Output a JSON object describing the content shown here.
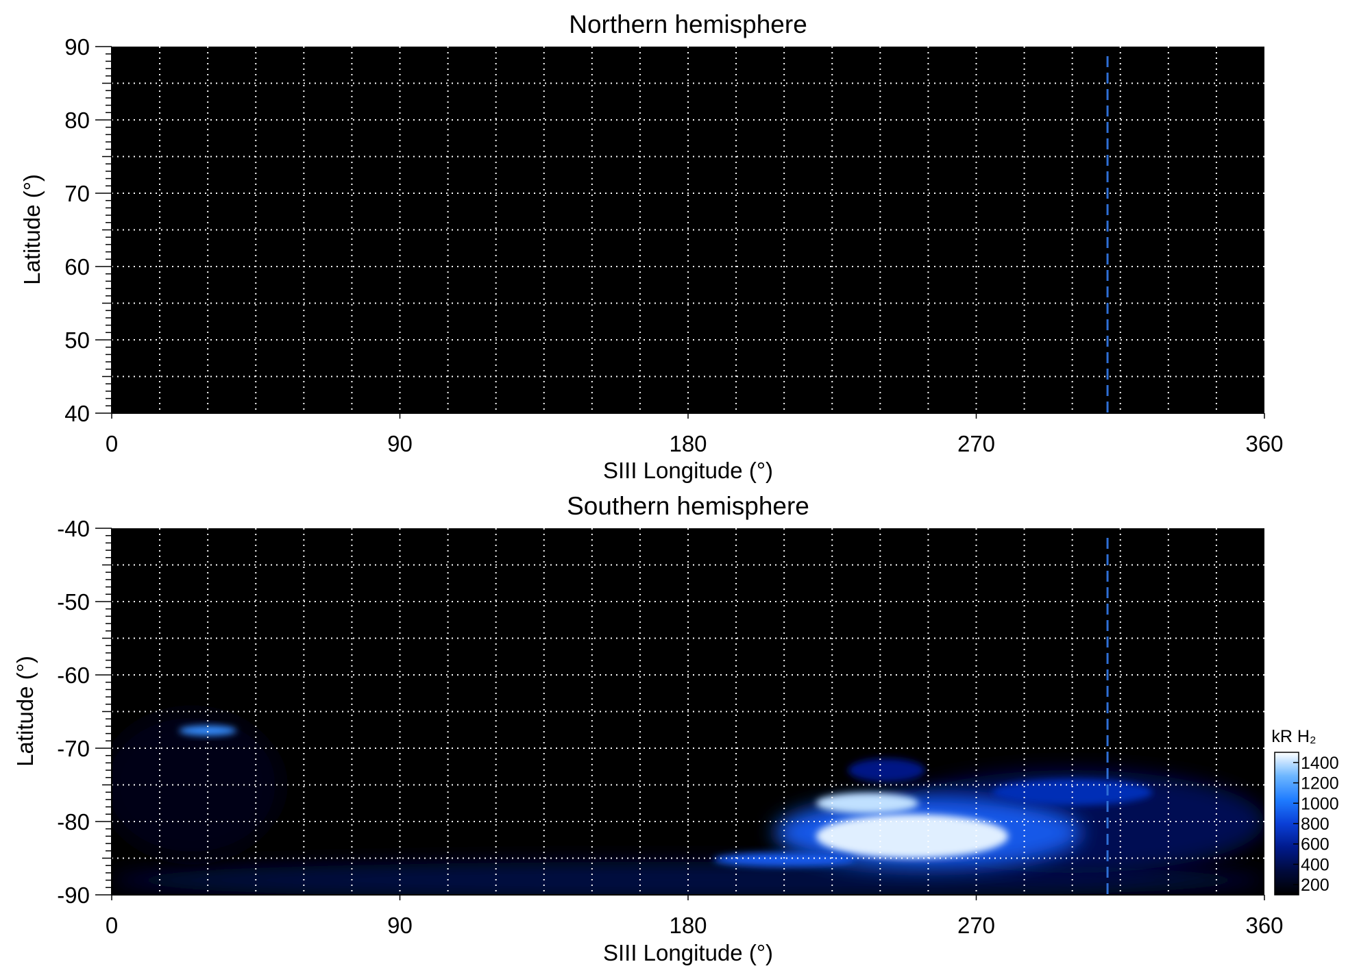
{
  "chart_data": [
    {
      "type": "heatmap",
      "title": "Northern hemisphere",
      "xlabel": "SIII Longitude (°)",
      "ylabel": "Latitude (°)",
      "xlim": [
        0,
        360
      ],
      "ylim": [
        40,
        90
      ],
      "xticks": [
        0,
        90,
        180,
        270,
        360
      ],
      "xtick_labels": [
        "0",
        "90",
        "180",
        "270",
        "360"
      ],
      "yticks": [
        40,
        50,
        60,
        70,
        80,
        90
      ],
      "ytick_labels": [
        "40",
        "50",
        "60",
        "70",
        "80",
        "90"
      ],
      "grid": true,
      "grid_x_step": 15,
      "grid_y_step": 5,
      "background_color": "#000000",
      "reference_line": {
        "x": 311,
        "style": "dashed",
        "color": "#2f6fd6"
      },
      "emission_regions": []
    },
    {
      "type": "heatmap",
      "title": "Southern hemisphere",
      "xlabel": "SIII Longitude (°)",
      "ylabel": "Latitude (°)",
      "xlim": [
        0,
        360
      ],
      "ylim": [
        -90,
        -40
      ],
      "xticks": [
        0,
        90,
        180,
        270,
        360
      ],
      "xtick_labels": [
        "0",
        "90",
        "180",
        "270",
        "360"
      ],
      "yticks": [
        -90,
        -80,
        -70,
        -60,
        -50,
        -40
      ],
      "ytick_labels": [
        "-90",
        "-80",
        "-70",
        "-60",
        "-50",
        "-40"
      ],
      "grid": true,
      "grid_x_step": 15,
      "grid_y_step": 5,
      "background_color": "#000000",
      "reference_line": {
        "x": 311,
        "style": "dashed",
        "color": "#2f6fd6"
      },
      "emission_regions": [
        {
          "lon": 180,
          "lat": -88,
          "lon_half_width": 180,
          "lat_half_width": 2.5,
          "intensity": 350
        },
        {
          "lon": 25,
          "lat": -75,
          "lon_half_width": 28,
          "lat_half_width": 10,
          "intensity": 180
        },
        {
          "lon": 300,
          "lat": -80,
          "lon_half_width": 60,
          "lat_half_width": 7,
          "intensity": 400
        },
        {
          "lon": 30,
          "lat": -67.6,
          "lon_half_width": 9,
          "lat_half_width": 0.7,
          "intensity": 1100
        },
        {
          "lon": 255,
          "lat": -81.5,
          "lon_half_width": 48,
          "lat_half_width": 5,
          "intensity": 900
        },
        {
          "lon": 250,
          "lat": -82,
          "lon_half_width": 30,
          "lat_half_width": 3,
          "intensity": 1450
        },
        {
          "lon": 236,
          "lat": -77.5,
          "lon_half_width": 16,
          "lat_half_width": 1.4,
          "intensity": 1400
        },
        {
          "lon": 242,
          "lat": -73,
          "lon_half_width": 12,
          "lat_half_width": 1.6,
          "intensity": 550
        },
        {
          "lon": 300,
          "lat": -76,
          "lon_half_width": 25,
          "lat_half_width": 1.8,
          "intensity": 700
        },
        {
          "lon": 210,
          "lat": -85.2,
          "lon_half_width": 22,
          "lat_half_width": 1.0,
          "intensity": 900
        }
      ],
      "colorbar": {
        "label": "kR H₂",
        "range": [
          100,
          1500
        ],
        "ticks": [
          200,
          400,
          600,
          800,
          1000,
          1200,
          1400
        ],
        "tick_labels": [
          "200",
          "400",
          "600",
          "800",
          "1000",
          "1200",
          "1400"
        ],
        "colors": [
          "#000000",
          "#000a3c",
          "#001a8c",
          "#0a3fd6",
          "#1f7cff",
          "#6cb6ff",
          "#ffffff"
        ]
      }
    }
  ]
}
